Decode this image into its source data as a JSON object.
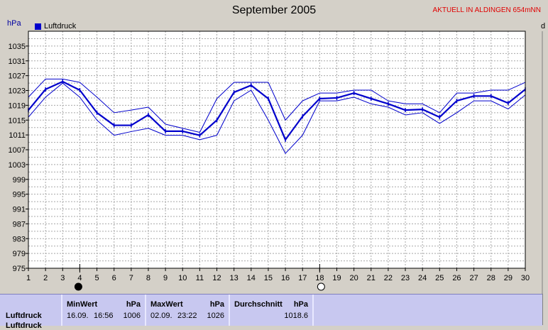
{
  "title": "September 2005",
  "status_text": "AKTUELL IN ALDINGEN 654mNN",
  "unit_left": "hPa",
  "unit_right": "d",
  "legend_label": "Luftdruck",
  "colors": {
    "series": "#0000cc",
    "plot_bg": "#ffffff",
    "grid": "#a0a0a0",
    "status": "#e00000",
    "table_bg": "#c8c8f0"
  },
  "markers": {
    "new_moon_day": 4,
    "full_moon_day": 18
  },
  "chart_data": {
    "type": "line",
    "x": [
      1,
      2,
      3,
      4,
      5,
      6,
      7,
      8,
      9,
      10,
      11,
      12,
      13,
      14,
      15,
      16,
      17,
      18,
      19,
      20,
      21,
      22,
      23,
      24,
      25,
      26,
      27,
      28,
      29,
      30
    ],
    "xlim": [
      1,
      30
    ],
    "ylim": [
      975,
      1039
    ],
    "yticks": [
      975,
      979,
      983,
      987,
      991,
      995,
      999,
      1003,
      1007,
      1011,
      1015,
      1019,
      1023,
      1027,
      1031,
      1035
    ],
    "xlabel": "",
    "ylabel": "hPa",
    "grid": true,
    "legend": "top-left",
    "series": [
      {
        "name": "Luftdruck",
        "role": "mean",
        "values": [
          1017.7,
          1023.3,
          1025.4,
          1023.1,
          1017.0,
          1013.6,
          1013.6,
          1016.4,
          1012.0,
          1012.0,
          1010.9,
          1015.0,
          1022.5,
          1024.4,
          1020.8,
          1009.7,
          1016.0,
          1020.8,
          1021.0,
          1022.3,
          1020.8,
          1019.4,
          1017.7,
          1017.9,
          1015.8,
          1020.2,
          1021.5,
          1021.5,
          1019.6,
          1023.3
        ]
      },
      {
        "role": "max",
        "values": [
          1021.2,
          1026.1,
          1026.1,
          1025.2,
          1021.2,
          1017.0,
          1017.7,
          1018.5,
          1013.9,
          1012.8,
          1011.7,
          1020.8,
          1025.2,
          1025.2,
          1025.2,
          1015.0,
          1020.2,
          1022.3,
          1022.3,
          1023.1,
          1023.1,
          1020.2,
          1019.4,
          1019.4,
          1017.0,
          1022.3,
          1022.3,
          1023.1,
          1023.1,
          1025.2
        ]
      },
      {
        "role": "min",
        "values": [
          1015.8,
          1021.2,
          1025.0,
          1021.2,
          1015.0,
          1010.9,
          1011.9,
          1012.8,
          1010.9,
          1010.9,
          1009.7,
          1010.9,
          1020.2,
          1023.1,
          1015.0,
          1006.0,
          1010.9,
          1020.2,
          1020.2,
          1021.2,
          1019.4,
          1018.5,
          1016.4,
          1017.0,
          1014.1,
          1017.0,
          1020.2,
          1020.2,
          1018.0,
          1021.8
        ]
      }
    ]
  },
  "table": {
    "row_label": "Luftdruck",
    "row_label_2": "Luftdruck",
    "min": {
      "header": "MinWert",
      "unit": "hPa",
      "date": "16.09.",
      "time": "16:56",
      "value": "1006"
    },
    "max": {
      "header": "MaxWert",
      "unit": "hPa",
      "date": "02.09.",
      "time": "23:22",
      "value": "1026"
    },
    "avg": {
      "header": "Durchschnitt",
      "unit": "hPa",
      "value": "1018.6"
    }
  }
}
